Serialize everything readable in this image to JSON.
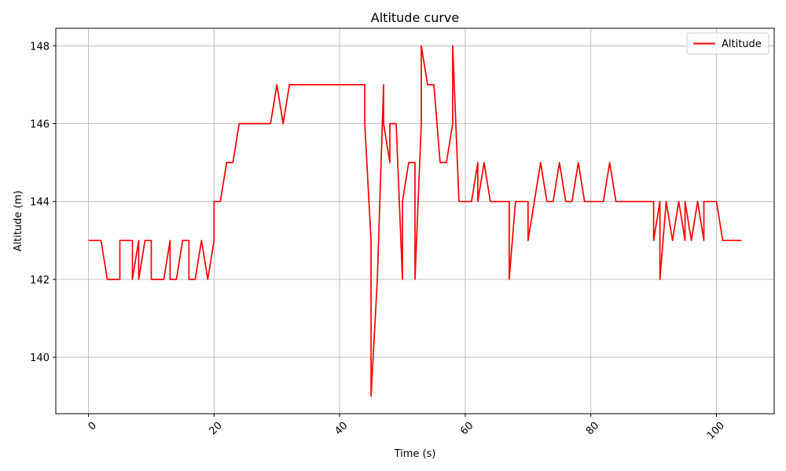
{
  "chart_data": {
    "type": "line",
    "title": "Altitude curve",
    "xlabel": "Time (s)",
    "ylabel": "Altitude (m)",
    "xlim": [
      -5.2,
      109.2
    ],
    "ylim": [
      138.55,
      148.45
    ],
    "xticks": [
      0,
      20,
      40,
      60,
      80,
      100
    ],
    "yticks": [
      140,
      142,
      144,
      146,
      148
    ],
    "x_tick_rotation_deg": 45,
    "grid": true,
    "legend": {
      "placement": "top-right",
      "entries": [
        "Altitude"
      ]
    },
    "series": [
      {
        "name": "Altitude",
        "color": "#ff0000",
        "x": [
          0,
          1,
          2,
          3,
          4,
          5,
          5,
          6,
          7,
          7,
          8,
          8,
          9,
          10,
          10,
          11,
          12,
          13,
          13,
          14,
          15,
          16,
          16,
          17,
          18,
          19,
          20,
          20,
          21,
          22,
          23,
          24,
          25,
          26,
          27,
          28,
          29,
          30,
          31,
          32,
          33,
          34,
          35,
          36,
          37,
          38,
          39,
          40,
          41,
          42,
          43,
          44,
          44,
          45,
          45,
          46,
          46.5,
          47,
          47,
          48,
          48,
          49,
          50,
          50,
          51,
          52,
          52,
          53,
          53,
          54,
          55,
          56,
          57,
          58,
          58,
          59,
          60,
          61,
          62,
          62,
          63,
          64,
          65,
          66,
          67,
          67,
          68,
          69,
          70,
          70,
          71,
          72,
          73,
          74,
          75,
          76,
          77,
          78,
          79,
          80,
          81,
          82,
          83,
          84,
          85,
          86,
          87,
          88,
          89,
          90,
          90,
          91,
          91,
          92,
          93,
          94,
          95,
          95,
          96,
          97,
          98,
          98,
          99,
          100,
          101,
          102,
          103,
          104
        ],
        "y": [
          143,
          143,
          143,
          142,
          142,
          142,
          143,
          143,
          143,
          142,
          143,
          142,
          143,
          143,
          142,
          142,
          142,
          143,
          142,
          142,
          143,
          143,
          142,
          142,
          143,
          142,
          143,
          144,
          144,
          145,
          145,
          146,
          146,
          146,
          146,
          146,
          146,
          147,
          146,
          147,
          147,
          147,
          147,
          147,
          147,
          147,
          147,
          147,
          147,
          147,
          147,
          147,
          146,
          143,
          139,
          142,
          144.5,
          147,
          146,
          145,
          146,
          146,
          142,
          144,
          145,
          145,
          142,
          146,
          148,
          147,
          147,
          145,
          145,
          146,
          148,
          144,
          144,
          144,
          145,
          144,
          145,
          144,
          144,
          144,
          144,
          142,
          144,
          144,
          144,
          143,
          144,
          145,
          144,
          144,
          145,
          144,
          144,
          145,
          144,
          144,
          144,
          144,
          145,
          144,
          144,
          144,
          144,
          144,
          144,
          144,
          143,
          144,
          142,
          144,
          143,
          144,
          143,
          144,
          143,
          144,
          143,
          144,
          144,
          144,
          143,
          143,
          143,
          143
        ]
      }
    ]
  }
}
